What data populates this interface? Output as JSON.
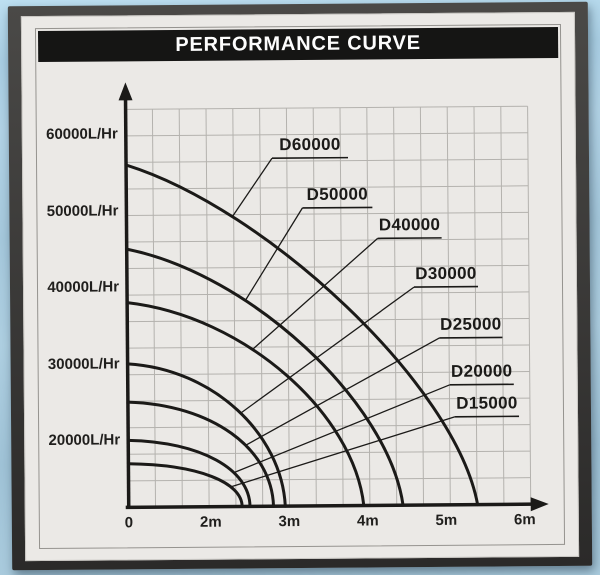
{
  "title": "PERFORMANCE CURVE",
  "chart_data": {
    "type": "line",
    "title": "PERFORMANCE CURVE",
    "grid": true,
    "legend_position": "inline-curve-labels",
    "x_axis": {
      "unit": "m",
      "ticks": [
        "0",
        "2m",
        "3m",
        "4m",
        "5m",
        "6m"
      ],
      "tick_values_m": [
        0,
        2,
        3,
        4,
        5,
        6
      ],
      "range_m": [
        0,
        6
      ]
    },
    "y_axis": {
      "unit": "L/Hr",
      "ticks": [
        "60000L/Hr",
        "50000L/Hr",
        "40000L/Hr",
        "30000L/Hr",
        "20000L/Hr"
      ],
      "tick_values_lhr": [
        60000,
        50000,
        40000,
        30000,
        20000
      ],
      "range_lhr": [
        0,
        64000
      ]
    },
    "series": [
      {
        "name": "D60000",
        "max_flow_lhr": 56000,
        "max_head_m": 5.4,
        "points_m_lhr": [
          [
            0,
            56000
          ],
          [
            3.7,
            38000
          ],
          [
            5.4,
            0
          ]
        ]
      },
      {
        "name": "D50000",
        "max_flow_lhr": 45000,
        "max_head_m": 4.45,
        "points_m_lhr": [
          [
            0,
            45000
          ],
          [
            3.1,
            31500
          ],
          [
            4.45,
            0
          ]
        ]
      },
      {
        "name": "D40000",
        "max_flow_lhr": 38000,
        "max_head_m": 3.95,
        "points_m_lhr": [
          [
            0,
            38000
          ],
          [
            2.8,
            27500
          ],
          [
            3.95,
            0
          ]
        ]
      },
      {
        "name": "D30000",
        "max_flow_lhr": 30000,
        "max_head_m": 2.95,
        "points_m_lhr": [
          [
            0,
            30000
          ],
          [
            2.2,
            22500
          ],
          [
            2.95,
            0
          ]
        ]
      },
      {
        "name": "D25000",
        "max_flow_lhr": 25000,
        "max_head_m": 2.8,
        "points_m_lhr": [
          [
            0,
            25000
          ],
          [
            2.1,
            20000
          ],
          [
            2.8,
            0
          ]
        ]
      },
      {
        "name": "D20000",
        "max_flow_lhr": 20000,
        "max_head_m": 2.5,
        "points_m_lhr": [
          [
            0,
            20000
          ],
          [
            1.9,
            12000
          ],
          [
            2.5,
            0
          ]
        ]
      },
      {
        "name": "D15000",
        "max_flow_lhr": 13000,
        "max_head_m": 2.4,
        "points_m_lhr": [
          [
            0,
            13000
          ],
          [
            1.75,
            8000
          ],
          [
            2.4,
            0
          ]
        ]
      }
    ]
  },
  "colors": {
    "background_sky": "#aecfe1",
    "frame": "#3b3a39",
    "card": "#ebe9e6",
    "banner": "#151514",
    "title_text": "#fdfdfd",
    "ink": "#1b1a18",
    "grid": "#b4b2ae"
  }
}
